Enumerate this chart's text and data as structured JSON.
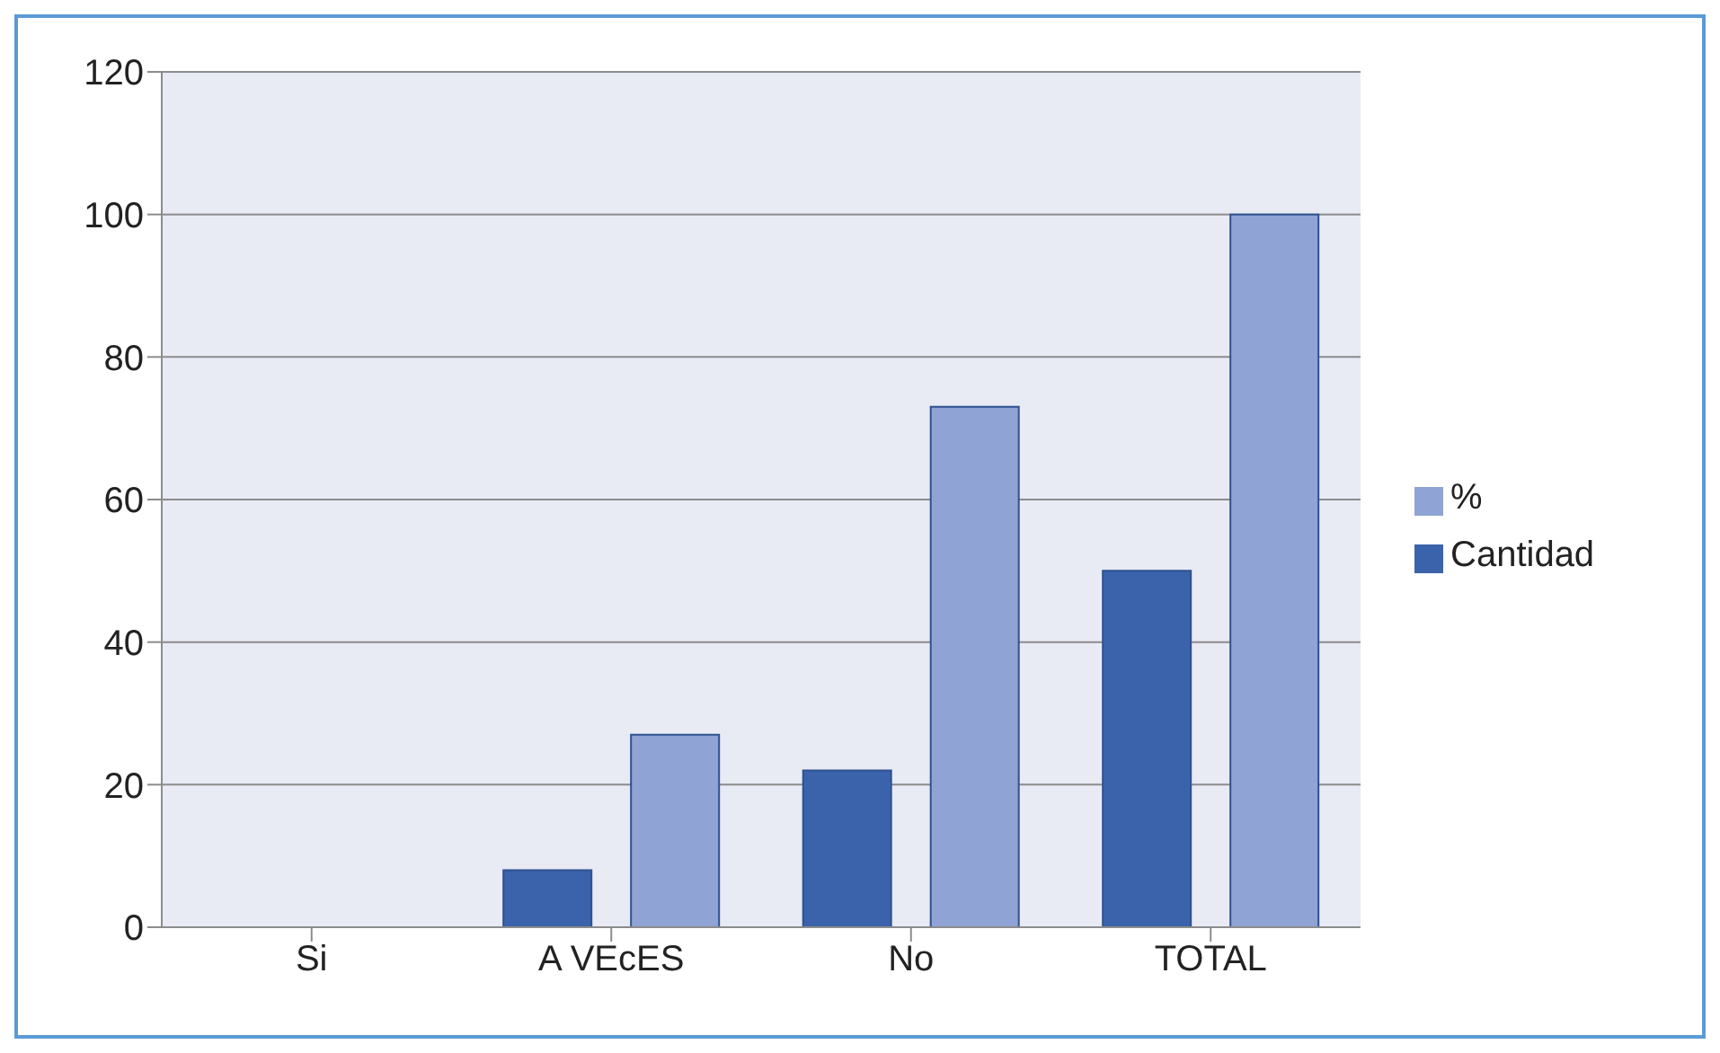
{
  "chart_data": {
    "type": "bar",
    "categories": [
      "Si",
      "A VEcES",
      "No",
      "TOTAL"
    ],
    "series": [
      {
        "name": "Cantidad",
        "color": "#3a63ab",
        "values": [
          0,
          8,
          22,
          50
        ]
      },
      {
        "name": "%",
        "color": "#8fa3d4",
        "values": [
          0,
          27,
          73,
          100
        ]
      }
    ],
    "ylim": [
      0,
      120
    ],
    "yticks": [
      0,
      20,
      40,
      60,
      80,
      100,
      120
    ],
    "grid": "y",
    "legend": "right"
  }
}
